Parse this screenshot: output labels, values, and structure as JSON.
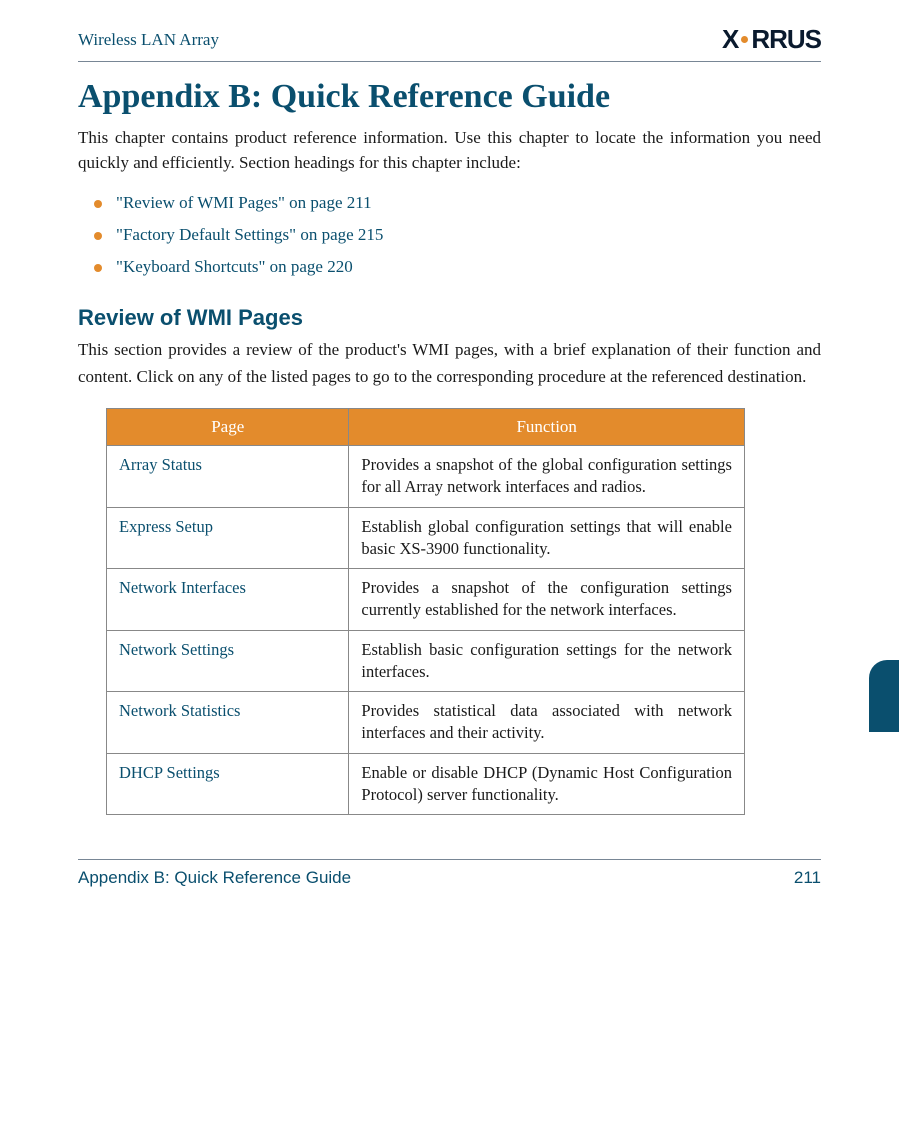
{
  "header": {
    "left": "Wireless LAN Array",
    "logo_text_prefix": "X",
    "logo_text_suffix": "RRUS"
  },
  "chapter_title": "Appendix B: Quick Reference Guide",
  "intro": "This chapter contains product reference information. Use this chapter to locate the information you need quickly and efficiently. Section headings for this chapter include:",
  "bullets": [
    "\"Review of WMI Pages\" on page 211",
    "\"Factory Default Settings\" on page 215",
    "\"Keyboard Shortcuts\" on page 220"
  ],
  "section": {
    "title": "Review of WMI Pages",
    "intro": "This section provides a review of the product's WMI pages, with a brief explanation of their function and content. Click on any of the listed pages to go to the corresponding procedure at the referenced destination."
  },
  "table": {
    "headers": {
      "page": "Page",
      "function": "Function"
    },
    "rows": [
      {
        "page": "Array Status",
        "function": "Provides a snapshot of the global configuration settings for all Array network interfaces and radios."
      },
      {
        "page": "Express Setup",
        "function": "Establish global configuration settings that will enable basic XS-3900 functionality."
      },
      {
        "page": "Network Interfaces",
        "function": "Provides a snapshot of the configuration settings currently established for the network interfaces."
      },
      {
        "page": "Network Settings",
        "function": "Establish basic configuration settings for the network interfaces."
      },
      {
        "page": "Network Statistics",
        "function": "Provides statistical data associated with network interfaces and their activity."
      },
      {
        "page": "DHCP Settings",
        "function": "Enable or disable DHCP (Dynamic Host Configuration Protocol) server functionality."
      }
    ]
  },
  "footer": {
    "left": "Appendix B: Quick Reference Guide",
    "page_number": "211"
  },
  "colors": {
    "accent_blue": "#0a4f6e",
    "accent_orange": "#e38b2c",
    "rule_gray": "#788695",
    "text": "#1a1a1a"
  }
}
